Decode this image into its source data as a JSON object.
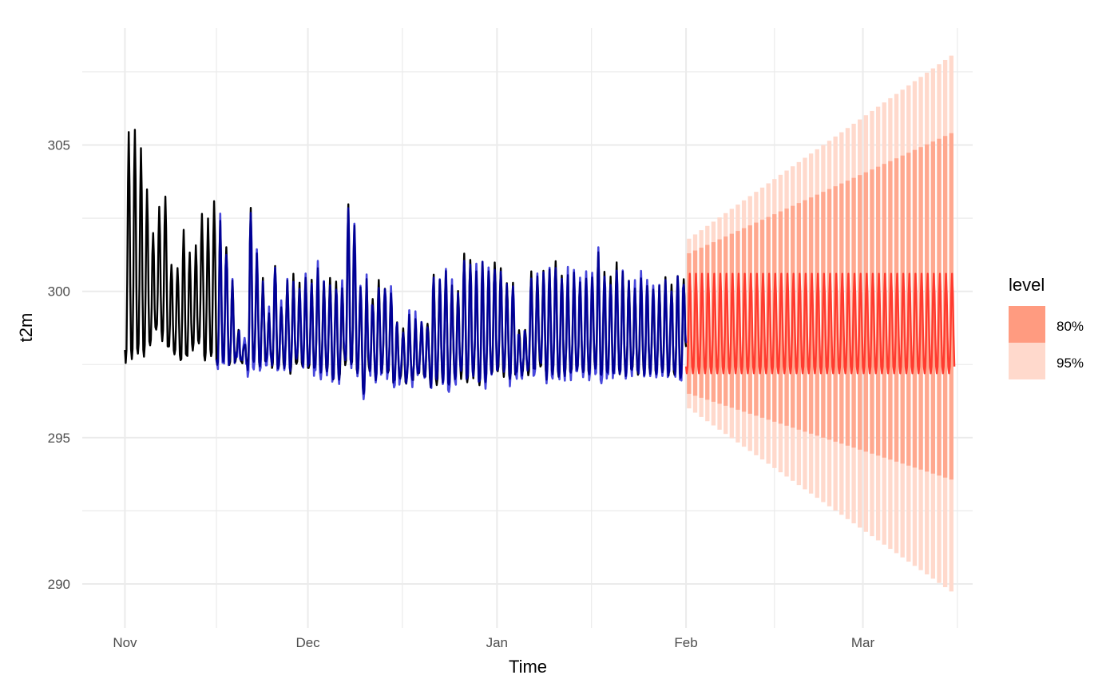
{
  "chart_data": {
    "type": "line",
    "title": "",
    "xlabel": "Time",
    "ylabel": "t2m",
    "x_tick_labels": [
      "Nov",
      "Dec",
      "Jan",
      "Feb",
      "Mar"
    ],
    "x_tick_dates": [
      "2023-11-01",
      "2023-12-01",
      "2024-01-01",
      "2024-02-01",
      "2024-03-01"
    ],
    "y_ticks": [
      290,
      295,
      300,
      305
    ],
    "ylim": [
      288.5,
      309
    ],
    "xlim": [
      "2023-10-25",
      "2024-03-19"
    ],
    "grid": true,
    "legend_position": "right",
    "legend": {
      "title": "level",
      "entries": [
        {
          "label": "80%",
          "color": "#FF9B80"
        },
        {
          "label": "95%",
          "color": "#FFD9CC"
        }
      ]
    },
    "colors": {
      "observed": "#000000",
      "fitted": "#0000CD",
      "forecast": "#FF3B2F",
      "band80": "#FF9B80",
      "band95": "#FFD9CC",
      "grid": "#EBEBEB"
    },
    "series": [
      {
        "role": "observed",
        "x_range": [
          "2023-11-01",
          "2024-02-01"
        ],
        "daily_range_approx": [
          [
            297.6,
            305.4
          ],
          [
            297.6,
            305.6
          ],
          [
            297.8,
            304.9
          ],
          [
            297.8,
            303.5
          ],
          [
            298.2,
            302.0
          ],
          [
            298.6,
            302.8
          ],
          [
            298.4,
            303.3
          ],
          [
            298.0,
            301.0
          ],
          [
            297.9,
            300.8
          ],
          [
            297.6,
            302.1
          ],
          [
            297.7,
            301.3
          ],
          [
            298.0,
            301.5
          ],
          [
            298.2,
            302.6
          ],
          [
            297.7,
            302.4
          ],
          [
            297.8,
            303.0
          ],
          [
            297.4,
            302.4
          ],
          [
            297.6,
            301.6
          ],
          [
            297.5,
            300.4
          ],
          [
            297.6,
            298.6
          ],
          [
            297.6,
            298.3
          ],
          [
            297.4,
            302.8
          ],
          [
            297.6,
            301.2
          ],
          [
            297.5,
            300.4
          ],
          [
            297.6,
            299.2
          ],
          [
            297.5,
            300.9
          ],
          [
            297.4,
            299.5
          ],
          [
            297.4,
            300.4
          ],
          [
            297.3,
            300.5
          ],
          [
            297.4,
            300.2
          ],
          [
            297.4,
            300.4
          ],
          [
            297.3,
            300.3
          ],
          [
            297.3,
            300.7
          ],
          [
            297.3,
            300.4
          ],
          [
            297.3,
            300.5
          ],
          [
            297.1,
            300.3
          ],
          [
            297.0,
            300.2
          ],
          [
            297.5,
            302.9
          ],
          [
            297.4,
            302.2
          ],
          [
            297.2,
            300.2
          ],
          [
            296.5,
            300.3
          ],
          [
            297.2,
            299.7
          ],
          [
            297.0,
            300.4
          ],
          [
            297.3,
            300.2
          ],
          [
            297.1,
            300.0
          ],
          [
            296.9,
            299.0
          ],
          [
            297.0,
            298.8
          ],
          [
            296.9,
            299.1
          ],
          [
            297.0,
            299.0
          ],
          [
            297.2,
            299.0
          ],
          [
            297.1,
            299.0
          ],
          [
            296.8,
            300.5
          ],
          [
            296.9,
            300.4
          ],
          [
            297.0,
            300.6
          ],
          [
            296.8,
            300.2
          ],
          [
            297.0,
            300.0
          ],
          [
            297.1,
            301.3
          ],
          [
            297.0,
            301.2
          ],
          [
            297.1,
            300.7
          ],
          [
            296.8,
            300.9
          ],
          [
            297.0,
            300.8
          ],
          [
            297.1,
            301.1
          ],
          [
            297.3,
            300.8
          ],
          [
            297.2,
            300.4
          ],
          [
            297.1,
            300.2
          ],
          [
            297.2,
            298.6
          ],
          [
            297.2,
            298.8
          ],
          [
            297.2,
            300.6
          ],
          [
            297.3,
            300.6
          ],
          [
            297.4,
            300.6
          ],
          [
            297.1,
            300.8
          ],
          [
            297.2,
            301.1
          ],
          [
            297.1,
            300.6
          ],
          [
            297.2,
            300.5
          ],
          [
            297.1,
            300.6
          ],
          [
            297.2,
            300.4
          ],
          [
            297.2,
            300.4
          ],
          [
            297.2,
            300.5
          ],
          [
            297.3,
            301.3
          ],
          [
            297.1,
            300.6
          ],
          [
            297.2,
            300.5
          ],
          [
            297.2,
            300.9
          ],
          [
            297.1,
            300.7
          ],
          [
            297.2,
            300.3
          ],
          [
            297.2,
            300.2
          ],
          [
            297.2,
            300.5
          ],
          [
            297.2,
            300.3
          ],
          [
            297.2,
            300.0
          ],
          [
            297.1,
            300.2
          ],
          [
            297.3,
            300.4
          ],
          [
            297.2,
            300.3
          ],
          [
            297.1,
            300.5
          ],
          [
            297.1,
            300.5
          ]
        ]
      },
      {
        "role": "fitted",
        "x_range": [
          "2023-11-16",
          "2024-02-01"
        ]
      },
      {
        "role": "forecast",
        "x_range": [
          "2024-02-01",
          "2024-03-16"
        ],
        "daily_range_approx": [
          297.2,
          300.6
        ]
      }
    ],
    "intervals": [
      {
        "level": "80%",
        "start": {
          "x": "2024-02-01",
          "range": [
            296.5,
            301.3
          ]
        },
        "end": {
          "x": "2024-03-16",
          "range": [
            293.5,
            305.5
          ]
        }
      },
      {
        "level": "95%",
        "start": {
          "x": "2024-02-01",
          "range": [
            296.0,
            301.8
          ]
        },
        "end": {
          "x": "2024-03-16",
          "range": [
            289.6,
            308.2
          ]
        }
      }
    ]
  }
}
